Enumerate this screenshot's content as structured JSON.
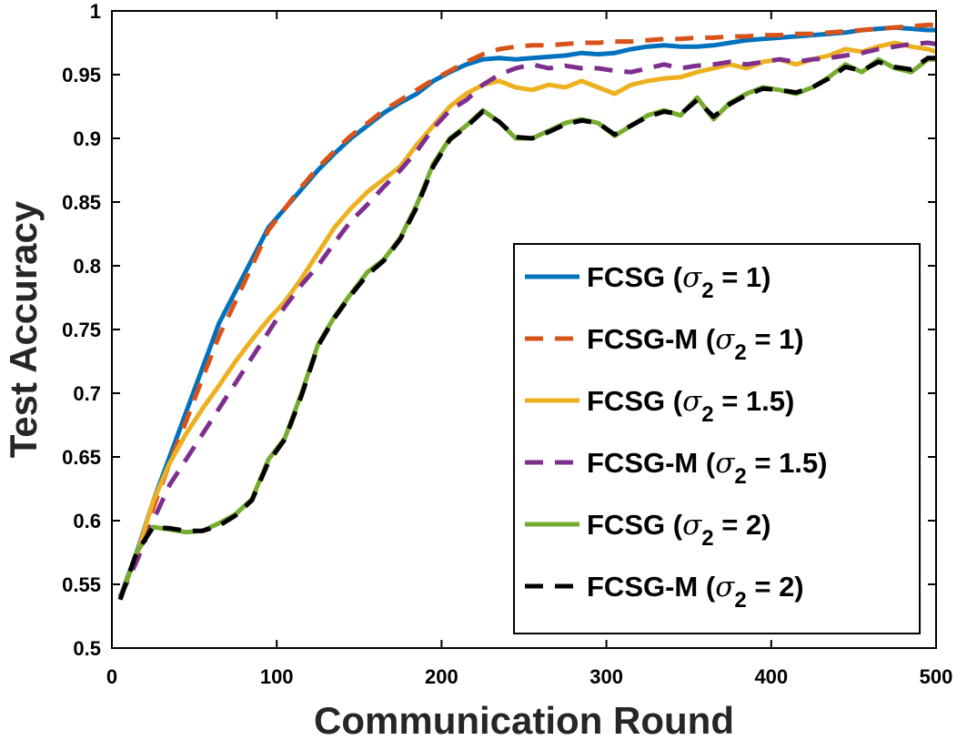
{
  "chart_data": {
    "type": "line",
    "xlabel": "Communication Round",
    "ylabel": "Test Accuracy",
    "xlim": [
      0,
      500
    ],
    "ylim": [
      0.5,
      1.0
    ],
    "xticks": [
      0,
      100,
      200,
      300,
      400,
      500
    ],
    "xtick_labels": [
      "0",
      "100",
      "200",
      "300",
      "400",
      "500"
    ],
    "yticks": [
      0.5,
      0.55,
      0.6,
      0.65,
      0.7,
      0.75,
      0.8,
      0.85,
      0.9,
      0.95,
      1.0
    ],
    "ytick_labels": [
      "0.5",
      "0.55",
      "0.6",
      "0.65",
      "0.7",
      "0.75",
      "0.8",
      "0.85",
      "0.9",
      "0.95",
      "1"
    ],
    "grid": false,
    "legend_position": "bottom-right",
    "series": [
      {
        "name": "FCSG (σ2 = 1)",
        "legend_text": {
          "prefix": "FCSG (",
          "sigma": "σ",
          "sub": "2",
          "suffix": " = 1)"
        },
        "color": "#0072BD",
        "dash": "solid",
        "x": [
          5,
          15,
          25,
          35,
          45,
          55,
          65,
          75,
          85,
          95,
          105,
          115,
          125,
          135,
          145,
          155,
          165,
          175,
          185,
          195,
          205,
          215,
          225,
          235,
          245,
          255,
          265,
          275,
          285,
          295,
          305,
          315,
          325,
          335,
          345,
          355,
          365,
          375,
          385,
          395,
          405,
          415,
          425,
          435,
          445,
          455,
          465,
          475,
          485,
          495,
          500
        ],
        "y": [
          0.54,
          0.575,
          0.615,
          0.65,
          0.685,
          0.72,
          0.755,
          0.78,
          0.805,
          0.83,
          0.845,
          0.86,
          0.875,
          0.888,
          0.9,
          0.91,
          0.92,
          0.928,
          0.935,
          0.945,
          0.952,
          0.958,
          0.962,
          0.963,
          0.962,
          0.963,
          0.964,
          0.965,
          0.967,
          0.966,
          0.967,
          0.97,
          0.972,
          0.973,
          0.972,
          0.972,
          0.973,
          0.975,
          0.977,
          0.978,
          0.979,
          0.98,
          0.981,
          0.982,
          0.983,
          0.985,
          0.986,
          0.987,
          0.986,
          0.985,
          0.985
        ]
      },
      {
        "name": "FCSG-M (σ2 = 1)",
        "legend_text": {
          "prefix": "FCSG-M (",
          "sigma": "σ",
          "sub": "2",
          "suffix": " = 1)"
        },
        "color": "#D95319",
        "dash": "dashed",
        "x": [
          5,
          15,
          25,
          35,
          45,
          55,
          65,
          75,
          85,
          95,
          105,
          115,
          125,
          135,
          145,
          155,
          165,
          175,
          185,
          195,
          205,
          215,
          225,
          235,
          245,
          255,
          265,
          275,
          285,
          295,
          305,
          315,
          325,
          335,
          345,
          355,
          365,
          375,
          385,
          395,
          405,
          415,
          425,
          435,
          445,
          455,
          465,
          475,
          485,
          495,
          500
        ],
        "y": [
          0.54,
          0.572,
          0.61,
          0.645,
          0.678,
          0.712,
          0.745,
          0.772,
          0.8,
          0.828,
          0.845,
          0.862,
          0.877,
          0.89,
          0.902,
          0.912,
          0.922,
          0.93,
          0.938,
          0.946,
          0.953,
          0.96,
          0.966,
          0.97,
          0.972,
          0.973,
          0.973,
          0.974,
          0.975,
          0.975,
          0.976,
          0.976,
          0.977,
          0.978,
          0.978,
          0.979,
          0.979,
          0.98,
          0.98,
          0.981,
          0.981,
          0.982,
          0.982,
          0.983,
          0.984,
          0.985,
          0.986,
          0.987,
          0.988,
          0.989,
          0.989
        ]
      },
      {
        "name": "FCSG (σ2 = 1.5)",
        "legend_text": {
          "prefix": "FCSG (",
          "sigma": "σ",
          "sub": "2",
          "suffix": " = 1.5)"
        },
        "color": "#EDB120",
        "dash": "solid",
        "x": [
          5,
          15,
          25,
          35,
          45,
          55,
          65,
          75,
          85,
          95,
          105,
          115,
          125,
          135,
          145,
          155,
          165,
          175,
          185,
          195,
          205,
          215,
          225,
          235,
          245,
          255,
          265,
          275,
          285,
          295,
          305,
          315,
          325,
          335,
          345,
          355,
          365,
          375,
          385,
          395,
          405,
          415,
          425,
          435,
          445,
          455,
          465,
          475,
          485,
          495,
          500
        ],
        "y": [
          0.54,
          0.573,
          0.615,
          0.645,
          0.668,
          0.688,
          0.706,
          0.725,
          0.742,
          0.758,
          0.772,
          0.79,
          0.81,
          0.83,
          0.845,
          0.858,
          0.868,
          0.878,
          0.895,
          0.91,
          0.925,
          0.935,
          0.942,
          0.945,
          0.94,
          0.938,
          0.942,
          0.94,
          0.945,
          0.94,
          0.935,
          0.942,
          0.945,
          0.947,
          0.948,
          0.952,
          0.955,
          0.958,
          0.955,
          0.96,
          0.962,
          0.958,
          0.962,
          0.965,
          0.97,
          0.968,
          0.972,
          0.975,
          0.972,
          0.97,
          0.968
        ]
      },
      {
        "name": "FCSG-M (σ2 = 1.5)",
        "legend_text": {
          "prefix": "FCSG-M (",
          "sigma": "σ",
          "sub": "2",
          "suffix": " = 1.5)"
        },
        "color": "#7E2F8E",
        "dash": "dashed",
        "x": [
          5,
          15,
          25,
          35,
          45,
          55,
          65,
          75,
          85,
          95,
          105,
          115,
          125,
          135,
          145,
          155,
          165,
          175,
          185,
          195,
          205,
          215,
          225,
          235,
          245,
          255,
          265,
          275,
          285,
          295,
          305,
          315,
          325,
          335,
          345,
          355,
          365,
          375,
          385,
          395,
          405,
          415,
          425,
          435,
          445,
          455,
          465,
          475,
          485,
          495,
          500
        ],
        "y": [
          0.54,
          0.568,
          0.6,
          0.628,
          0.648,
          0.668,
          0.688,
          0.708,
          0.728,
          0.748,
          0.768,
          0.785,
          0.8,
          0.818,
          0.835,
          0.848,
          0.862,
          0.875,
          0.89,
          0.908,
          0.922,
          0.93,
          0.942,
          0.95,
          0.955,
          0.958,
          0.955,
          0.957,
          0.955,
          0.955,
          0.953,
          0.952,
          0.955,
          0.958,
          0.955,
          0.957,
          0.958,
          0.96,
          0.958,
          0.96,
          0.962,
          0.96,
          0.962,
          0.963,
          0.965,
          0.967,
          0.97,
          0.972,
          0.974,
          0.975,
          0.974
        ]
      },
      {
        "name": "FCSG (σ2 = 2)",
        "legend_text": {
          "prefix": "FCSG (",
          "sigma": "σ",
          "sub": "2",
          "suffix": " = 2)"
        },
        "color": "#77AC30",
        "dash": "solid",
        "x": [
          5,
          15,
          25,
          35,
          45,
          55,
          65,
          75,
          85,
          95,
          105,
          115,
          125,
          135,
          145,
          155,
          165,
          175,
          185,
          195,
          205,
          215,
          225,
          235,
          245,
          255,
          265,
          275,
          285,
          295,
          305,
          315,
          325,
          335,
          345,
          355,
          365,
          375,
          385,
          395,
          405,
          415,
          425,
          435,
          445,
          455,
          465,
          475,
          485,
          495,
          500
        ],
        "y": [
          0.538,
          0.575,
          0.595,
          0.593,
          0.591,
          0.592,
          0.598,
          0.605,
          0.617,
          0.648,
          0.665,
          0.7,
          0.738,
          0.76,
          0.778,
          0.795,
          0.805,
          0.822,
          0.848,
          0.88,
          0.9,
          0.91,
          0.922,
          0.913,
          0.9,
          0.9,
          0.906,
          0.912,
          0.915,
          0.912,
          0.902,
          0.91,
          0.918,
          0.922,
          0.918,
          0.932,
          0.915,
          0.928,
          0.935,
          0.94,
          0.938,
          0.935,
          0.94,
          0.948,
          0.958,
          0.952,
          0.962,
          0.955,
          0.952,
          0.962,
          0.962
        ]
      },
      {
        "name": "FCSG-M (σ2 = 2)",
        "legend_text": {
          "prefix": "FCSG-M (",
          "sigma": "σ",
          "sub": "2",
          "suffix": " = 2)"
        },
        "color": "#000000",
        "dash": "dashed",
        "x": [
          5,
          15,
          25,
          35,
          45,
          55,
          65,
          75,
          85,
          95,
          105,
          115,
          125,
          135,
          145,
          155,
          165,
          175,
          185,
          195,
          205,
          215,
          225,
          235,
          245,
          255,
          265,
          275,
          285,
          295,
          305,
          315,
          325,
          335,
          345,
          355,
          365,
          375,
          385,
          395,
          405,
          415,
          425,
          435,
          445,
          455,
          465,
          475,
          485,
          495,
          500
        ],
        "y": [
          0.538,
          0.575,
          0.595,
          0.594,
          0.592,
          0.592,
          0.596,
          0.604,
          0.616,
          0.646,
          0.664,
          0.698,
          0.737,
          0.759,
          0.777,
          0.793,
          0.804,
          0.821,
          0.846,
          0.878,
          0.899,
          0.909,
          0.921,
          0.913,
          0.901,
          0.9,
          0.905,
          0.911,
          0.914,
          0.912,
          0.903,
          0.91,
          0.917,
          0.921,
          0.919,
          0.93,
          0.917,
          0.927,
          0.934,
          0.939,
          0.938,
          0.936,
          0.94,
          0.947,
          0.956,
          0.953,
          0.96,
          0.956,
          0.954,
          0.963,
          0.963
        ]
      }
    ]
  }
}
